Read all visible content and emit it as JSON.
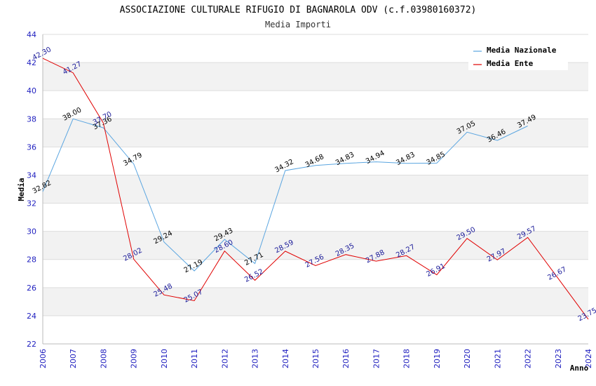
{
  "chart_data": {
    "type": "line",
    "title": "ASSOCIAZIONE CULTURALE RIFUGIO DI BAGNAROLA ODV (c.f.03980160372)",
    "subtitle": "Media Importi",
    "xlabel": "Anno",
    "ylabel": "Media",
    "ylim": [
      22,
      44
    ],
    "yticks": [
      22,
      24,
      26,
      28,
      30,
      32,
      34,
      36,
      38,
      40,
      42,
      44
    ],
    "categories": [
      "2006",
      "2007",
      "2008",
      "2009",
      "2010",
      "2011",
      "2012",
      "2013",
      "2014",
      "2015",
      "2016",
      "2017",
      "2018",
      "2019",
      "2020",
      "2021",
      "2022",
      "2023",
      "2024"
    ],
    "grid": true,
    "legend_position": "top-right",
    "series": [
      {
        "name": "Media Nazionale",
        "color": "#5aa5e0",
        "label_color": "#000000",
        "values": [
          32.82,
          38.0,
          37.36,
          34.79,
          29.24,
          27.19,
          29.43,
          27.71,
          34.32,
          34.68,
          34.83,
          34.94,
          34.83,
          34.85,
          37.05,
          36.46,
          37.49,
          null,
          null
        ],
        "labels": [
          "32.82",
          "38.00",
          "37.36",
          "34.79",
          "29.24",
          "27.19",
          "29.43",
          "27.71",
          "34.32",
          "34.68",
          "34.83",
          "34.94",
          "34.83",
          "34.85",
          "37.05",
          "36.46",
          "37.49",
          "",
          ""
        ]
      },
      {
        "name": "Media Ente",
        "color": "#e00000",
        "label_color": "#1a1a99",
        "values": [
          42.3,
          41.27,
          37.7,
          28.02,
          25.48,
          25.07,
          28.6,
          26.52,
          28.59,
          27.56,
          28.35,
          27.88,
          28.27,
          26.91,
          29.5,
          27.97,
          29.57,
          26.67,
          23.75
        ],
        "labels": [
          "42.30",
          "41.27",
          "37.70",
          "28.02",
          "25.48",
          "25.07",
          "28.60",
          "26.52",
          "28.59",
          "27.56",
          "28.35",
          "27.88",
          "28.27",
          "26.91",
          "29.50",
          "27.97",
          "29.57",
          "26.67",
          "23.75"
        ]
      }
    ]
  }
}
